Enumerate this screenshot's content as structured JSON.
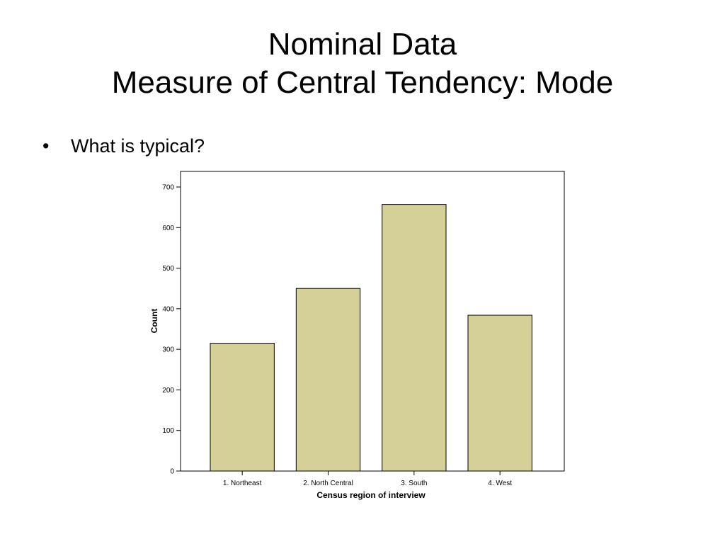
{
  "slide": {
    "title_line1": "Nominal Data",
    "title_line2": "Measure of Central Tendency: Mode",
    "bullets": [
      {
        "text": "What is typical?"
      }
    ]
  },
  "chart_data": {
    "type": "bar",
    "title": "",
    "xlabel": "Census region of interview",
    "ylabel": "Count",
    "categories": [
      "1. Northeast",
      "2. North Central",
      "3. South",
      "4. West"
    ],
    "values": [
      315,
      450,
      657,
      384
    ],
    "ylim": [
      0,
      700
    ],
    "yticks": [
      0,
      100,
      200,
      300,
      400,
      500,
      600,
      700
    ],
    "grid": false,
    "legend": "none",
    "bar_color": "#d4d098",
    "bar_stroke": "#000000"
  }
}
